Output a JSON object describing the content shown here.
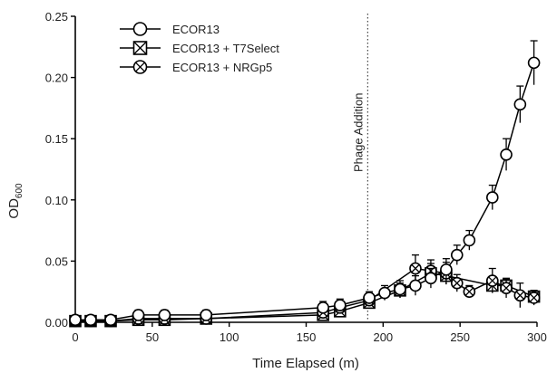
{
  "chart_data": {
    "type": "line",
    "title": "",
    "xlabel": "Time Elapsed (m)",
    "ylabel_main": "OD",
    "ylabel_sub": "600",
    "xlim": [
      0,
      300
    ],
    "ylim": [
      0,
      0.25
    ],
    "xticks": [
      0,
      50,
      100,
      150,
      200,
      250,
      300
    ],
    "xtick_labels": [
      "0",
      "50",
      "100",
      "150",
      "200",
      "250",
      "300"
    ],
    "yticks": [
      0,
      0.05,
      0.1,
      0.15,
      0.2,
      0.25
    ],
    "ytick_labels": [
      "0.00",
      "0.05",
      "0.10",
      "0.15",
      "0.20",
      "0.25"
    ],
    "grid": false,
    "legend_position": "top-left",
    "annotation": {
      "x": 190,
      "label": "Phage Addition"
    },
    "series": [
      {
        "name": "ECOR13",
        "marker": "circle",
        "points": [
          {
            "x": 0,
            "y": 0.002,
            "err": 0.002
          },
          {
            "x": 10,
            "y": 0.002,
            "err": 0.002
          },
          {
            "x": 23,
            "y": 0.002,
            "err": 0.003
          },
          {
            "x": 41,
            "y": 0.006,
            "err": 0.004
          },
          {
            "x": 58,
            "y": 0.006,
            "err": 0.004
          },
          {
            "x": 85,
            "y": 0.006,
            "err": 0.004
          },
          {
            "x": 161,
            "y": 0.012,
            "err": 0.005
          },
          {
            "x": 172,
            "y": 0.014,
            "err": 0.005
          },
          {
            "x": 191,
            "y": 0.02,
            "err": 0.005
          },
          {
            "x": 201,
            "y": 0.024,
            "err": 0.006
          },
          {
            "x": 211,
            "y": 0.027,
            "err": 0.007
          },
          {
            "x": 221,
            "y": 0.03,
            "err": 0.008
          },
          {
            "x": 231,
            "y": 0.036,
            "err": 0.008
          },
          {
            "x": 241,
            "y": 0.043,
            "err": 0.009
          },
          {
            "x": 248,
            "y": 0.055,
            "err": 0.008
          },
          {
            "x": 256,
            "y": 0.067,
            "err": 0.008
          },
          {
            "x": 271,
            "y": 0.102,
            "err": 0.01
          },
          {
            "x": 280,
            "y": 0.137,
            "err": 0.013
          },
          {
            "x": 289,
            "y": 0.178,
            "err": 0.015
          },
          {
            "x": 298,
            "y": 0.212,
            "err": 0.018
          }
        ]
      },
      {
        "name": "ECOR13 + T7Select",
        "marker": "square-x",
        "points": [
          {
            "x": 0,
            "y": 0.001,
            "err": 0.001
          },
          {
            "x": 10,
            "y": 0.001,
            "err": 0.001
          },
          {
            "x": 23,
            "y": 0.001,
            "err": 0.002
          },
          {
            "x": 41,
            "y": 0.002,
            "err": 0.002
          },
          {
            "x": 58,
            "y": 0.002,
            "err": 0.002
          },
          {
            "x": 85,
            "y": 0.003,
            "err": 0.003
          },
          {
            "x": 161,
            "y": 0.006,
            "err": 0.004
          },
          {
            "x": 172,
            "y": 0.009,
            "err": 0.004
          },
          {
            "x": 191,
            "y": 0.016,
            "err": 0.004
          },
          {
            "x": 211,
            "y": 0.026,
            "err": 0.006
          },
          {
            "x": 231,
            "y": 0.04,
            "err": 0.008
          },
          {
            "x": 241,
            "y": 0.038,
            "err": 0.007
          },
          {
            "x": 271,
            "y": 0.03,
            "err": 0.006
          },
          {
            "x": 280,
            "y": 0.03,
            "err": 0.005
          },
          {
            "x": 298,
            "y": 0.021,
            "err": 0.005
          }
        ]
      },
      {
        "name": "ECOR13 + NRGp5",
        "marker": "circle-x",
        "points": [
          {
            "x": 0,
            "y": 0.001,
            "err": 0.001
          },
          {
            "x": 10,
            "y": 0.001,
            "err": 0.001
          },
          {
            "x": 23,
            "y": 0.001,
            "err": 0.002
          },
          {
            "x": 41,
            "y": 0.003,
            "err": 0.002
          },
          {
            "x": 58,
            "y": 0.003,
            "err": 0.002
          },
          {
            "x": 85,
            "y": 0.003,
            "err": 0.003
          },
          {
            "x": 161,
            "y": 0.008,
            "err": 0.004
          },
          {
            "x": 172,
            "y": 0.012,
            "err": 0.004
          },
          {
            "x": 191,
            "y": 0.018,
            "err": 0.005
          },
          {
            "x": 221,
            "y": 0.044,
            "err": 0.011
          },
          {
            "x": 231,
            "y": 0.042,
            "err": 0.009
          },
          {
            "x": 241,
            "y": 0.04,
            "err": 0.009
          },
          {
            "x": 248,
            "y": 0.032,
            "err": 0.007
          },
          {
            "x": 256,
            "y": 0.025,
            "err": 0.005
          },
          {
            "x": 271,
            "y": 0.034,
            "err": 0.01
          },
          {
            "x": 280,
            "y": 0.028,
            "err": 0.008
          },
          {
            "x": 289,
            "y": 0.022,
            "err": 0.01
          },
          {
            "x": 298,
            "y": 0.02,
            "err": 0.006
          }
        ]
      }
    ]
  }
}
